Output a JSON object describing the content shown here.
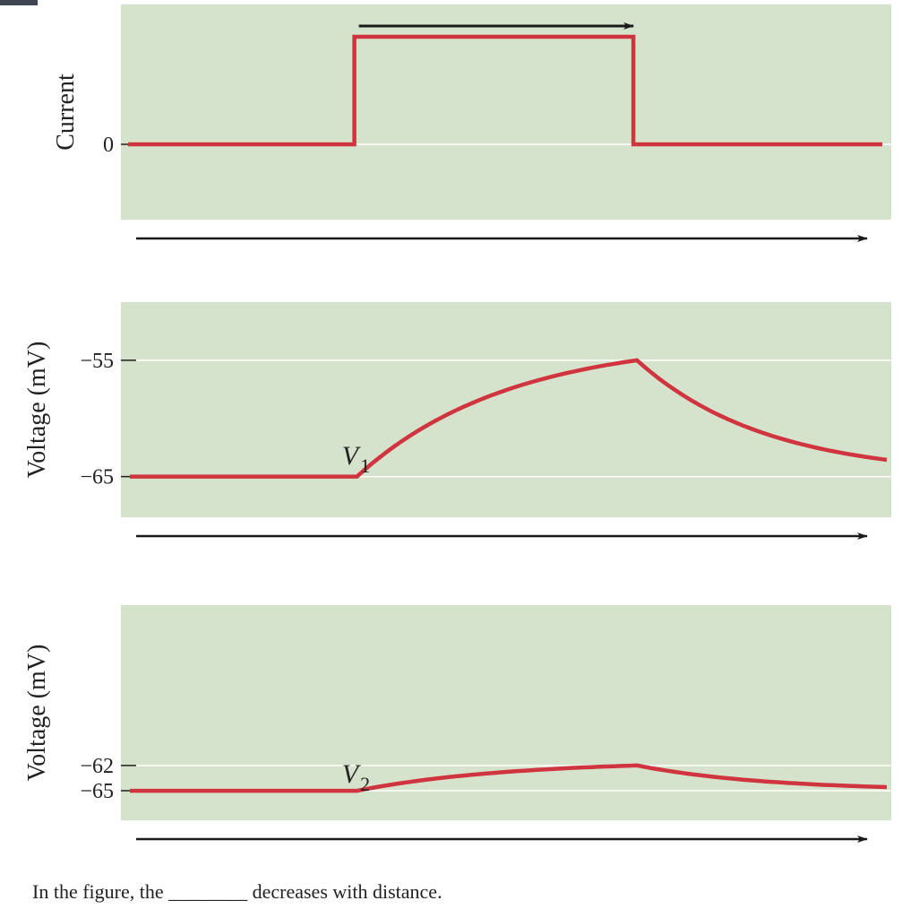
{
  "colors": {
    "panel_bg": "#d6e3cc",
    "trace": "#d0343f",
    "gridline": "#ffffff",
    "arrow": "#1a1a1a",
    "text": "#222222"
  },
  "chart_data": [
    {
      "type": "line",
      "ylabel": "Current",
      "y_ticks": [
        {
          "value": 0,
          "label": "0"
        }
      ],
      "ylim": [
        -0.7,
        1.3
      ],
      "xlim": [
        0,
        10
      ],
      "series": [
        {
          "name": "current",
          "x": [
            0,
            3,
            3,
            6.7,
            6.7,
            10
          ],
          "y": [
            0,
            0,
            1,
            1,
            0,
            0
          ]
        }
      ],
      "annotation": "stimulus duration arrow above step",
      "stim_arrow": [
        3,
        6.7
      ]
    },
    {
      "type": "line",
      "ylabel": "Voltage (mV)",
      "y_ticks": [
        {
          "value": -55,
          "label": "−55"
        },
        {
          "value": -65,
          "label": "−65"
        }
      ],
      "ylim": [
        -68.5,
        -50
      ],
      "xlim": [
        0,
        10
      ],
      "trace_label": {
        "name": "V",
        "sub": "1",
        "x": 1.5,
        "y": -63.2
      },
      "series": [
        {
          "name": "V1",
          "rest": -65,
          "peak": -55,
          "onset": 3,
          "offset": 6.7,
          "end": 10,
          "tau": 2.0
        }
      ]
    },
    {
      "type": "line",
      "ylabel": "Voltage (mV)",
      "y_ticks": [
        {
          "value": -62,
          "label": "−62"
        },
        {
          "value": -65,
          "label": "−65"
        }
      ],
      "ylim": [
        -68.5,
        -43
      ],
      "xlim": [
        0,
        10
      ],
      "trace_label": {
        "name": "V",
        "sub": "2",
        "x": 1.5,
        "y": -63.0
      },
      "series": [
        {
          "name": "V2",
          "rest": -65,
          "peak": -62,
          "onset": 3,
          "offset": 6.7,
          "end": 10,
          "tau": 2.0
        }
      ]
    }
  ],
  "question": {
    "before": "In the figure, the",
    "blank": "________",
    "after": "decreases with distance."
  }
}
